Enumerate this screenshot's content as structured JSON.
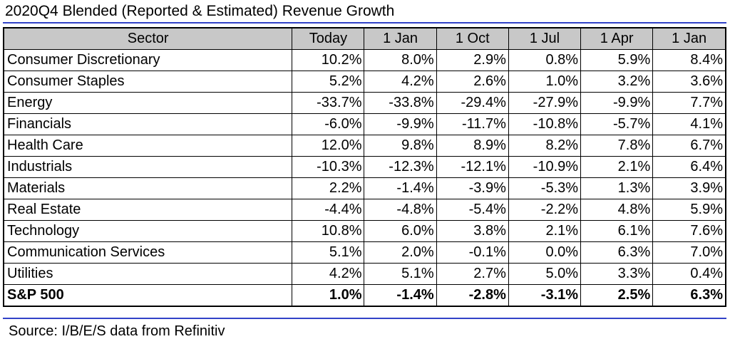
{
  "title": "2020Q4 Blended (Reported & Estimated) Revenue Growth",
  "headers": [
    "Sector",
    "Today",
    "1 Jan",
    "1 Oct",
    "1 Jul",
    "1 Apr",
    "1 Jan"
  ],
  "rows": [
    {
      "sector": "Consumer Discretionary",
      "values": [
        "10.2%",
        "8.0%",
        "2.9%",
        "0.8%",
        "5.9%",
        "8.4%"
      ]
    },
    {
      "sector": "Consumer Staples",
      "values": [
        "5.2%",
        "4.2%",
        "2.6%",
        "1.0%",
        "3.2%",
        "3.6%"
      ]
    },
    {
      "sector": "Energy",
      "values": [
        "-33.7%",
        "-33.8%",
        "-29.4%",
        "-27.9%",
        "-9.9%",
        "7.7%"
      ]
    },
    {
      "sector": "Financials",
      "values": [
        "-6.0%",
        "-9.9%",
        "-11.7%",
        "-10.8%",
        "-5.7%",
        "4.1%"
      ]
    },
    {
      "sector": "Health Care",
      "values": [
        "12.0%",
        "9.8%",
        "8.9%",
        "8.2%",
        "7.8%",
        "6.7%"
      ]
    },
    {
      "sector": "Industrials",
      "values": [
        "-10.3%",
        "-12.3%",
        "-12.1%",
        "-10.9%",
        "2.1%",
        "6.4%"
      ]
    },
    {
      "sector": "Materials",
      "values": [
        "2.2%",
        "-1.4%",
        "-3.9%",
        "-5.3%",
        "1.3%",
        "3.9%"
      ]
    },
    {
      "sector": "Real Estate",
      "values": [
        "-4.4%",
        "-4.8%",
        "-5.4%",
        "-2.2%",
        "4.8%",
        "5.9%"
      ]
    },
    {
      "sector": "Technology",
      "values": [
        "10.8%",
        "6.0%",
        "3.8%",
        "2.1%",
        "6.1%",
        "7.6%"
      ]
    },
    {
      "sector": "Communication Services",
      "values": [
        "5.1%",
        "2.0%",
        "-0.1%",
        "0.0%",
        "6.3%",
        "7.0%"
      ]
    },
    {
      "sector": "Utilities",
      "values": [
        "4.2%",
        "5.1%",
        "2.7%",
        "5.0%",
        "3.3%",
        "0.4%"
      ]
    }
  ],
  "total": {
    "sector": "S&P 500",
    "values": [
      "1.0%",
      "-1.4%",
      "-2.8%",
      "-3.1%",
      "2.5%",
      "6.3%"
    ]
  },
  "source": "Source: I/B/E/S data from Refinitiv",
  "colors": {
    "rule": "#3142c8",
    "header_bg": "#c8c8c8"
  }
}
